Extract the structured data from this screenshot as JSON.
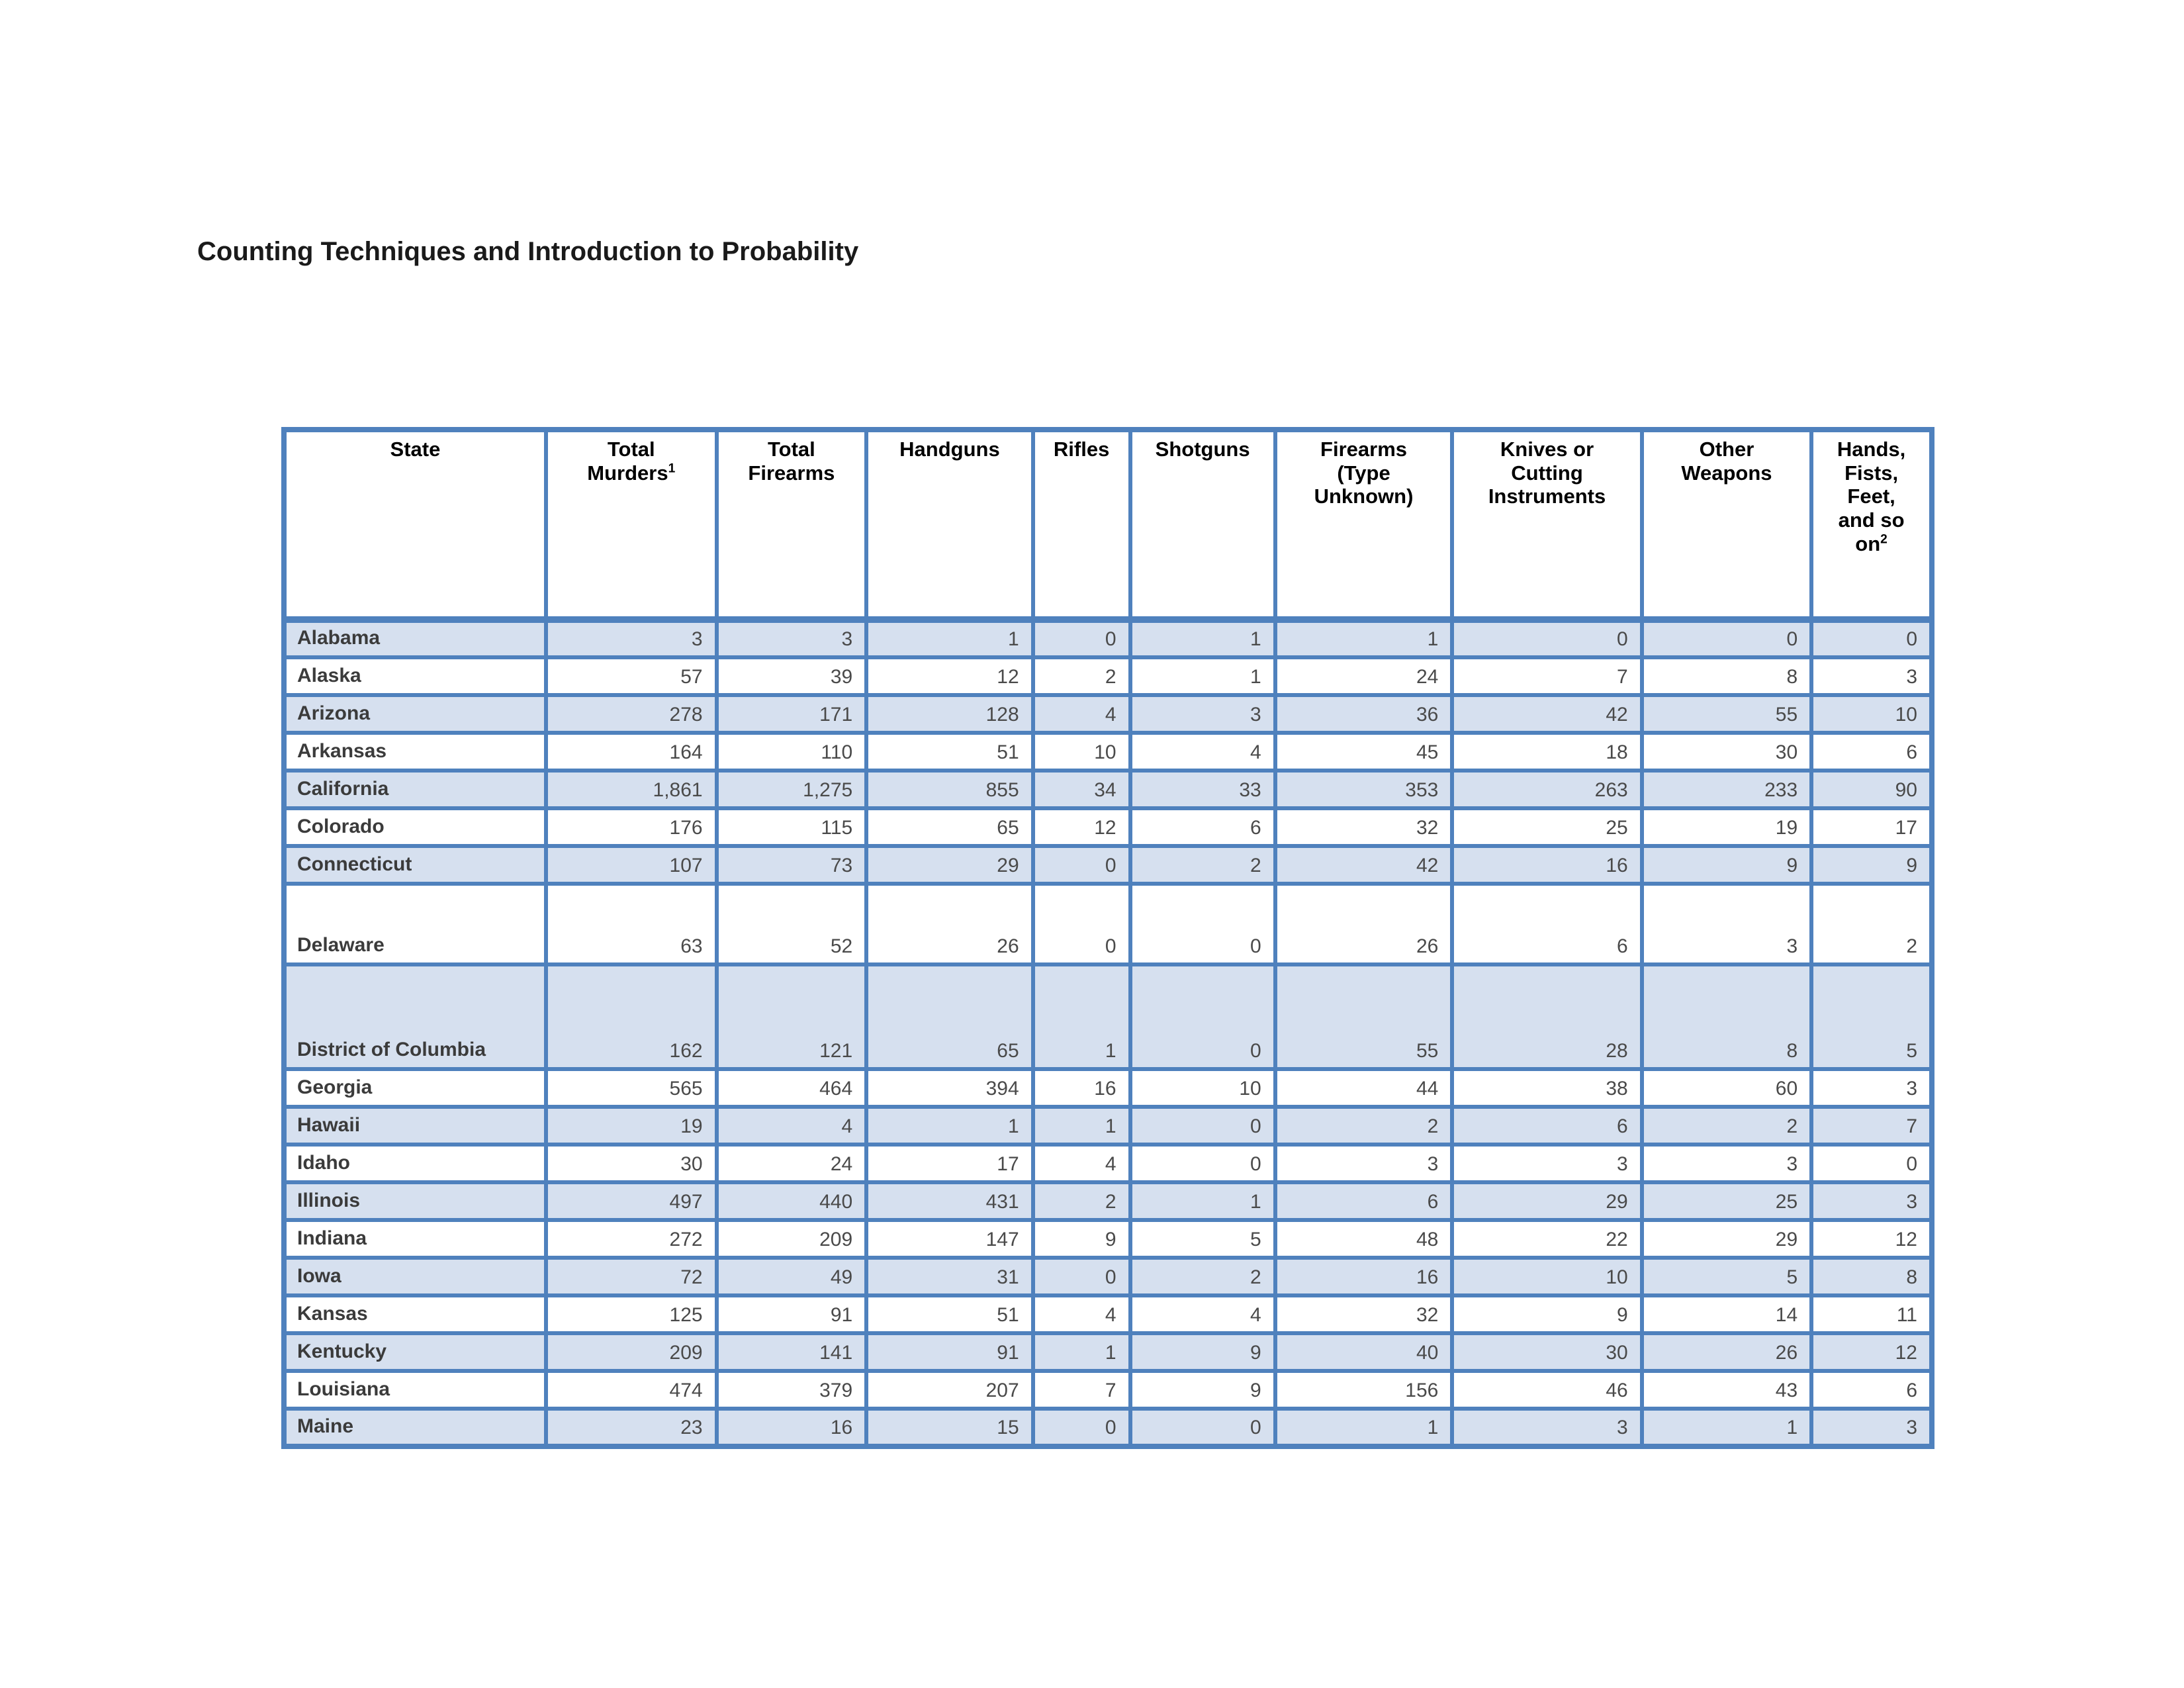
{
  "page": {
    "title": "Counting Techniques and Introduction to Probability"
  },
  "table": {
    "headers": {
      "state": {
        "line1": "State"
      },
      "total_murders": {
        "line1": "Total",
        "line2": "Murders",
        "sup": "1"
      },
      "total_firearms": {
        "line1": "Total",
        "line2": "Firearms"
      },
      "handguns": {
        "line1": "Handguns"
      },
      "rifles": {
        "line1": "Rifles"
      },
      "shotguns": {
        "line1": "Shotguns"
      },
      "firearms_type_unknown": {
        "line1": "Firearms",
        "line2": "(Type",
        "line3": "Unknown)"
      },
      "knives_or_cutting_instruments": {
        "line1": "Knives or",
        "line2": "Cutting",
        "line3": "Instruments"
      },
      "other_weapons": {
        "line1": "Other",
        "line2": "Weapons"
      },
      "hands_fists_feet": {
        "line1": "Hands,",
        "line2": "Fists,",
        "line3": "Feet,",
        "line4": "and so",
        "line5": "on",
        "sup": "2"
      }
    },
    "rows": [
      {
        "state": "Alabama",
        "shaded": true,
        "values": [
          "3",
          "3",
          "1",
          "0",
          "1",
          "1",
          "0",
          "0",
          "0"
        ]
      },
      {
        "state": "Alaska",
        "shaded": false,
        "values": [
          "57",
          "39",
          "12",
          "2",
          "1",
          "24",
          "7",
          "8",
          "3"
        ]
      },
      {
        "state": "Arizona",
        "shaded": true,
        "values": [
          "278",
          "171",
          "128",
          "4",
          "3",
          "36",
          "42",
          "55",
          "10"
        ]
      },
      {
        "state": "Arkansas",
        "shaded": false,
        "values": [
          "164",
          "110",
          "51",
          "10",
          "4",
          "45",
          "18",
          "30",
          "6"
        ]
      },
      {
        "state": "California",
        "shaded": true,
        "values": [
          "1,861",
          "1,275",
          "855",
          "34",
          "33",
          "353",
          "263",
          "233",
          "90"
        ]
      },
      {
        "state": "Colorado",
        "shaded": false,
        "values": [
          "176",
          "115",
          "65",
          "12",
          "6",
          "32",
          "25",
          "19",
          "17"
        ]
      },
      {
        "state": "Connecticut",
        "shaded": true,
        "values": [
          "107",
          "73",
          "29",
          "0",
          "2",
          "42",
          "16",
          "9",
          "9"
        ]
      },
      {
        "state": "Delaware",
        "shaded": false,
        "height": "tall",
        "values": [
          "63",
          "52",
          "26",
          "0",
          "0",
          "26",
          "6",
          "3",
          "2"
        ]
      },
      {
        "state": "District of Columbia",
        "shaded": true,
        "height": "xtall",
        "values": [
          "162",
          "121",
          "65",
          "1",
          "0",
          "55",
          "28",
          "8",
          "5"
        ]
      },
      {
        "state": "Georgia",
        "shaded": false,
        "values": [
          "565",
          "464",
          "394",
          "16",
          "10",
          "44",
          "38",
          "60",
          "3"
        ]
      },
      {
        "state": "Hawaii",
        "shaded": true,
        "values": [
          "19",
          "4",
          "1",
          "1",
          "0",
          "2",
          "6",
          "2",
          "7"
        ]
      },
      {
        "state": "Idaho",
        "shaded": false,
        "values": [
          "30",
          "24",
          "17",
          "4",
          "0",
          "3",
          "3",
          "3",
          "0"
        ]
      },
      {
        "state": "Illinois",
        "shaded": true,
        "values": [
          "497",
          "440",
          "431",
          "2",
          "1",
          "6",
          "29",
          "25",
          "3"
        ]
      },
      {
        "state": "Indiana",
        "shaded": false,
        "values": [
          "272",
          "209",
          "147",
          "9",
          "5",
          "48",
          "22",
          "29",
          "12"
        ]
      },
      {
        "state": "Iowa",
        "shaded": true,
        "values": [
          "72",
          "49",
          "31",
          "0",
          "2",
          "16",
          "10",
          "5",
          "8"
        ]
      },
      {
        "state": "Kansas",
        "shaded": false,
        "values": [
          "125",
          "91",
          "51",
          "4",
          "4",
          "32",
          "9",
          "14",
          "11"
        ]
      },
      {
        "state": "Kentucky",
        "shaded": true,
        "values": [
          "209",
          "141",
          "91",
          "1",
          "9",
          "40",
          "30",
          "26",
          "12"
        ]
      },
      {
        "state": "Louisiana",
        "shaded": false,
        "values": [
          "474",
          "379",
          "207",
          "7",
          "9",
          "156",
          "46",
          "43",
          "6"
        ]
      },
      {
        "state": "Maine",
        "shaded": true,
        "values": [
          "23",
          "16",
          "15",
          "0",
          "0",
          "1",
          "3",
          "1",
          "3"
        ]
      }
    ]
  }
}
